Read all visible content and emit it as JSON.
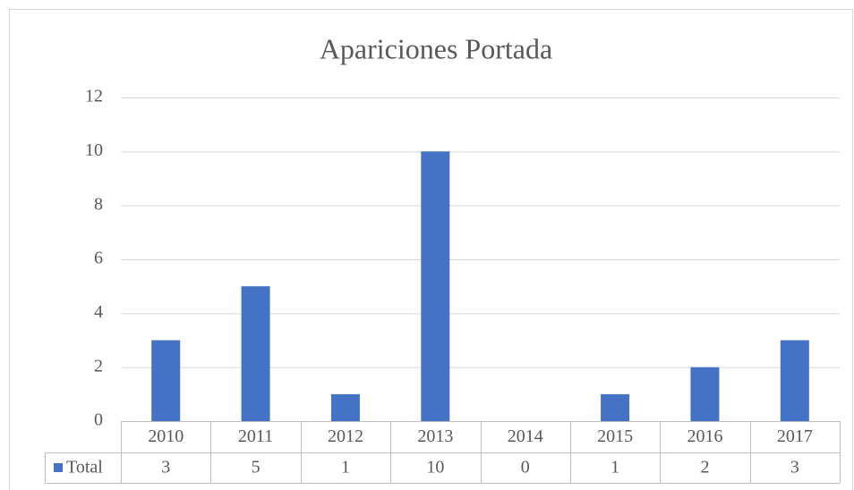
{
  "chart_data": {
    "type": "bar",
    "title": "Apariciones Portada",
    "categories": [
      "2010",
      "2011",
      "2012",
      "2013",
      "2014",
      "2015",
      "2016",
      "2017"
    ],
    "series": [
      {
        "name": "Total",
        "color": "#4472c4",
        "values": [
          3,
          5,
          1,
          10,
          0,
          1,
          2,
          3
        ]
      }
    ],
    "ylim": [
      0,
      12
    ],
    "yticks": [
      0,
      2,
      4,
      6,
      8,
      10,
      12
    ],
    "grid": true,
    "data_table": true
  }
}
